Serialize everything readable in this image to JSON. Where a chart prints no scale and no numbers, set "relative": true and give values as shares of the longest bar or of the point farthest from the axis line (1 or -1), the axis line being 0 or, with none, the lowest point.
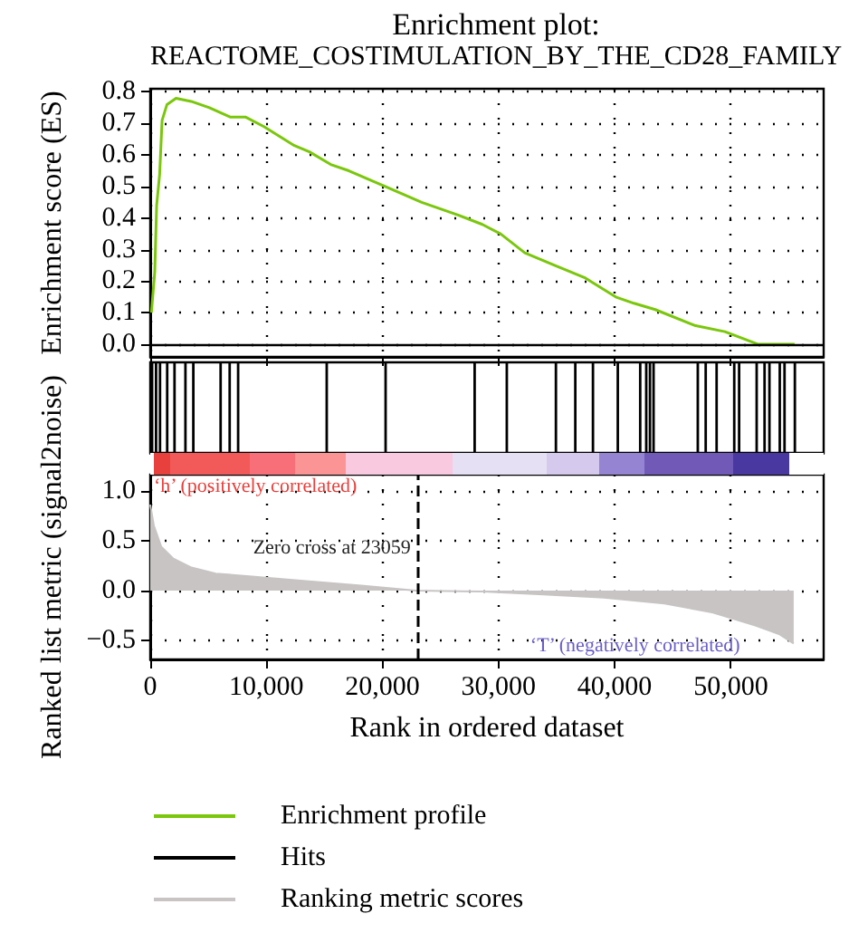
{
  "chart_data": [
    {
      "type": "line",
      "title": "Enrichment plot:",
      "subtitle": "REACTOME_COSTIMULATION_BY_THE_CD28_FAMILY",
      "ylabel": "Enrichment score (ES)",
      "x": [
        100,
        390,
        550,
        810,
        1020,
        1440,
        2220,
        3530,
        5090,
        6920,
        8230,
        9790,
        11100,
        12410,
        13710,
        15540,
        17110,
        20240,
        23380,
        26510,
        28600,
        30170,
        32260,
        34870,
        37480,
        40090,
        41660,
        43490,
        46880,
        49490,
        52370,
        55500
      ],
      "series": [
        {
          "name": "Enrichment profile",
          "color": "#7ac70c",
          "values": [
            0.1,
            0.23,
            0.44,
            0.54,
            0.71,
            0.76,
            0.78,
            0.77,
            0.75,
            0.72,
            0.72,
            0.69,
            0.66,
            0.63,
            0.61,
            0.57,
            0.55,
            0.5,
            0.45,
            0.41,
            0.38,
            0.35,
            0.29,
            0.25,
            0.21,
            0.15,
            0.13,
            0.11,
            0.06,
            0.04,
            0.0,
            0.0
          ]
        }
      ],
      "xlim": [
        0,
        58000
      ],
      "xticks": [
        0,
        10000,
        20000,
        30000,
        40000,
        50000
      ],
      "ylim": [
        -0.04,
        0.81
      ],
      "yticks": [
        {
          "value": 0,
          "label": "0.0"
        },
        0.1,
        0.2,
        0.3,
        0.4,
        0.5,
        0.6,
        0.7,
        0.8
      ],
      "tick_labels": "y",
      "grid": true,
      "marker": "none",
      "line_style": "solid",
      "legend": "bottom",
      "ref_lines": [
        {
          "axis": "y",
          "value": 0,
          "color": "#000000",
          "line_style": "solid"
        }
      ]
    },
    {
      "type": "bar",
      "relative": true,
      "tick_labels": false,
      "legend": "bottom",
      "xlim": [
        0,
        58000
      ],
      "x": [
        160,
        500,
        840,
        1460,
        2090,
        3030,
        3710,
        6060,
        6840,
        7570,
        15200,
        20270,
        27940,
        30710,
        34940,
        36610,
        38130,
        40270,
        42200,
        42720,
        43040,
        43350,
        47160,
        47840,
        48780,
        50300,
        50720,
        52230,
        52910,
        53330,
        54220,
        54630,
        55520
      ],
      "series": [
        {
          "name": "Hits",
          "color": "#000000",
          "values": [
            1,
            1,
            1,
            1,
            1,
            1,
            1,
            1,
            1,
            1,
            1,
            1,
            1,
            1,
            1,
            1,
            1,
            1,
            1,
            1,
            1,
            1,
            1,
            1,
            1,
            1,
            1,
            1,
            1,
            1,
            1,
            1,
            1
          ]
        }
      ]
    },
    {
      "type": "area",
      "xlabel": "Rank in ordered dataset",
      "ylabel": "Ranked list metric (signal2noise)",
      "x": [
        0,
        310,
        940,
        1990,
        3550,
        5640,
        8780,
        12960,
        18180,
        22880,
        28630,
        33850,
        39070,
        44290,
        48470,
        52120,
        54210,
        55420
      ],
      "series": [
        {
          "name": "Ranking metric scores",
          "color": "#c8c4c4",
          "values": [
            0.86,
            0.65,
            0.44,
            0.32,
            0.23,
            0.17,
            0.14,
            0.1,
            0.05,
            0.0,
            -0.01,
            -0.04,
            -0.07,
            -0.13,
            -0.22,
            -0.35,
            -0.44,
            -0.53
          ]
        }
      ],
      "xlim": [
        0,
        58000
      ],
      "xticks": [
        0,
        {
          "value": 10000,
          "label": "10,000"
        },
        {
          "value": 20000,
          "label": "20,000"
        },
        {
          "value": 30000,
          "label": "30,000"
        },
        {
          "value": 40000,
          "label": "40,000"
        },
        {
          "value": 50000,
          "label": "50,000"
        }
      ],
      "ylim": [
        -0.69,
        1.16
      ],
      "yticks": [
        {
          "value": -0.5,
          "label": "−0.5"
        },
        {
          "value": 0,
          "label": "0.0"
        },
        {
          "value": 0.5,
          "label": "0.5"
        },
        {
          "value": 1,
          "label": "1.0"
        }
      ],
      "grid": true,
      "marker": "none",
      "legend": "bottom",
      "ref_lines": [
        {
          "axis": "x",
          "value": 23059,
          "label": "Zero cross at 23059",
          "color": "#000000",
          "line_style": "dashed"
        }
      ],
      "annotations": [
        "‘h’ (positively correlated)",
        "‘T’ (negatively correlated)"
      ]
    }
  ]
}
